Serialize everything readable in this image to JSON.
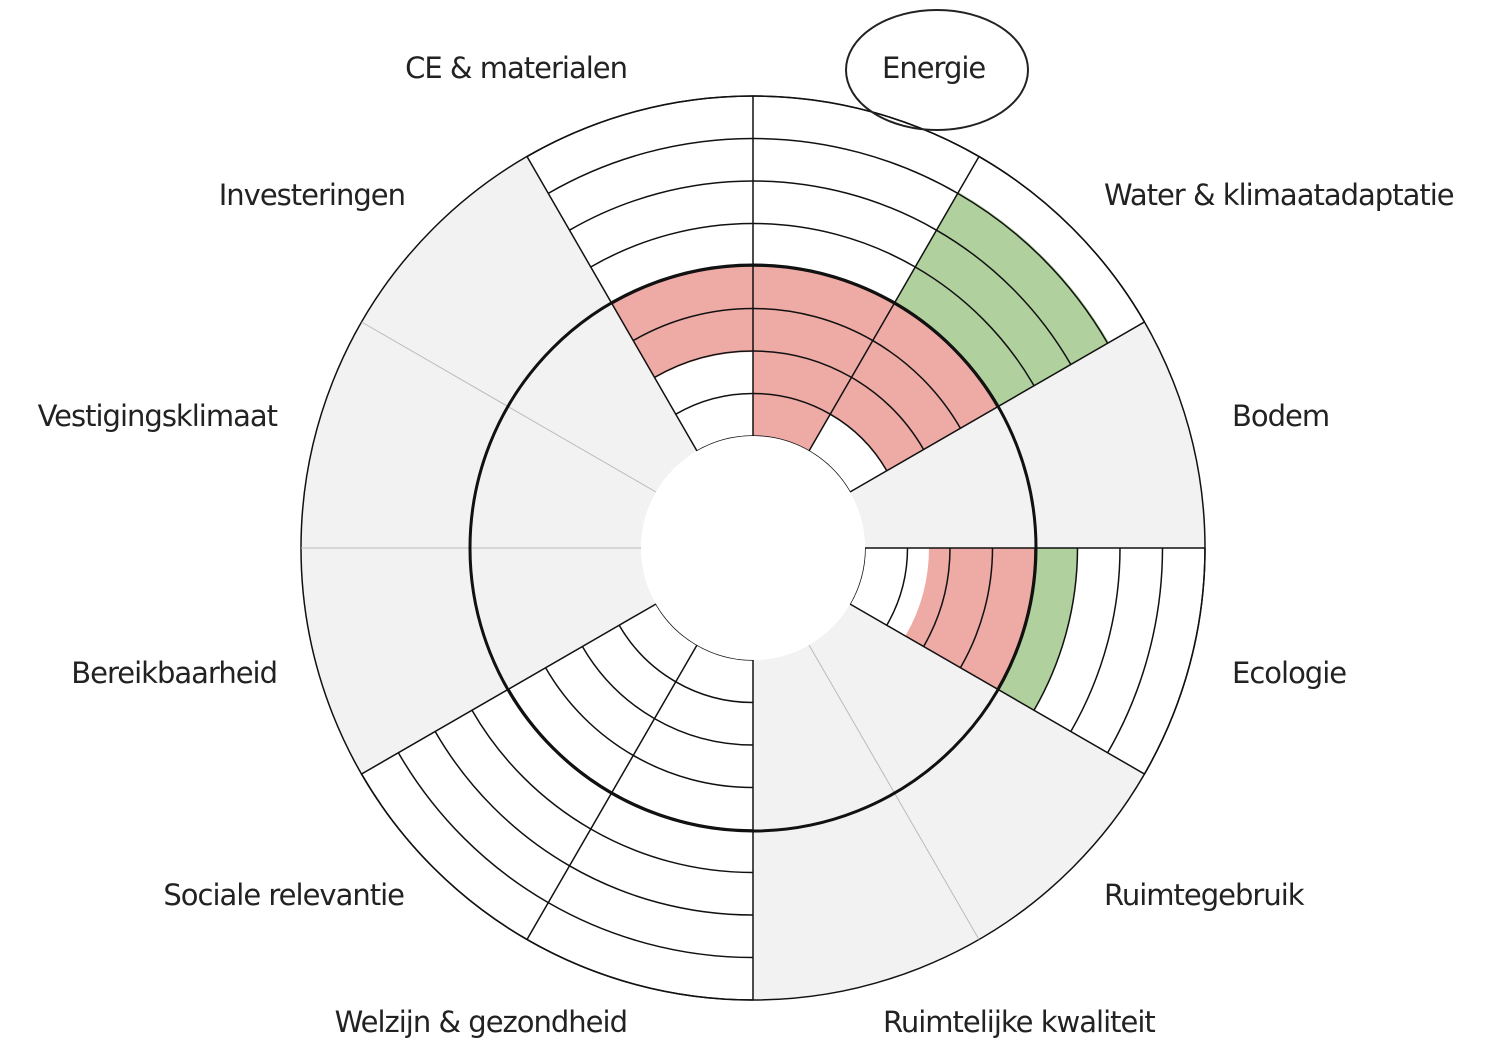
{
  "labels": [
    "CE & materialen",
    "Energie",
    "Water & klimaatadaptatie",
    "Bodem",
    "Ecologie",
    "Ruimtegebruik",
    "Ruimtelijke kwaliteit",
    "Welzijn & gezondheid",
    "Sociale relevantie",
    "Bereikbaarheid",
    "Vestigingsklimaat",
    "Investeringen"
  ]
}
